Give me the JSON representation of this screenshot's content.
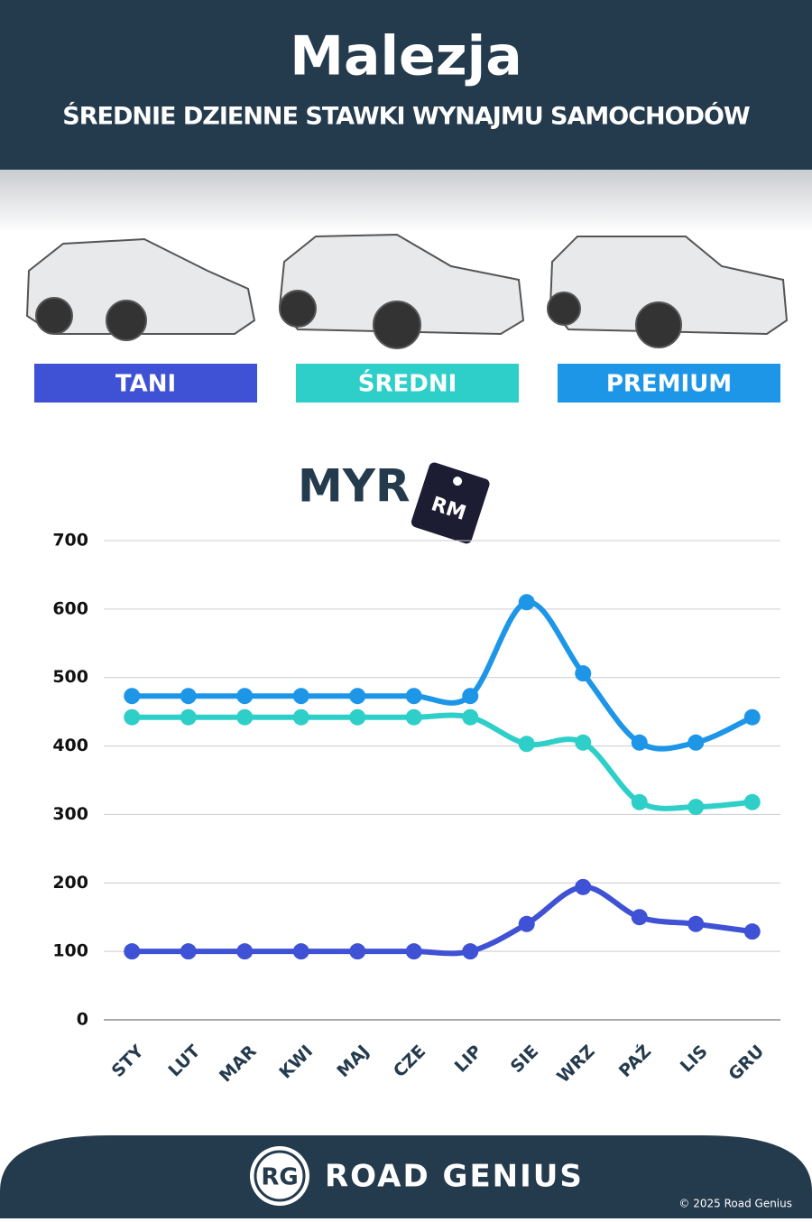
{
  "chart_data": {
    "type": "line",
    "title": "Malezja",
    "subtitle": "ŚREDNIE DZIENNE STAWKI WYNAJMU SAMOCHODÓW",
    "unit_label": "MYR",
    "tag_label": "RM",
    "categories": [
      "STY",
      "LUT",
      "MAR",
      "KWI",
      "MAJ",
      "CZE",
      "LIP",
      "SIE",
      "WRZ",
      "PAŹ",
      "LIS",
      "GRU"
    ],
    "series": [
      {
        "name": "TANI",
        "color": "#3f51d4",
        "values": [
          100,
          100,
          100,
          100,
          100,
          100,
          100,
          140,
          194,
          150,
          140,
          129
        ]
      },
      {
        "name": "ŚREDNI",
        "color": "#2ecfc8",
        "values": [
          442,
          442,
          442,
          442,
          442,
          442,
          442,
          403,
          405,
          318,
          311,
          318
        ]
      },
      {
        "name": "PREMIUM",
        "color": "#1e96e8",
        "values": [
          473,
          473,
          473,
          473,
          473,
          473,
          473,
          610,
          506,
          405,
          405,
          442
        ]
      }
    ],
    "ylim": [
      0,
      700
    ],
    "yticks": [
      0,
      100,
      200,
      300,
      400,
      500,
      600,
      700
    ],
    "grid": true
  },
  "footer": {
    "logo": "RG",
    "brand": "ROAD GENIUS",
    "copyright": "© 2025 Road Genius"
  }
}
